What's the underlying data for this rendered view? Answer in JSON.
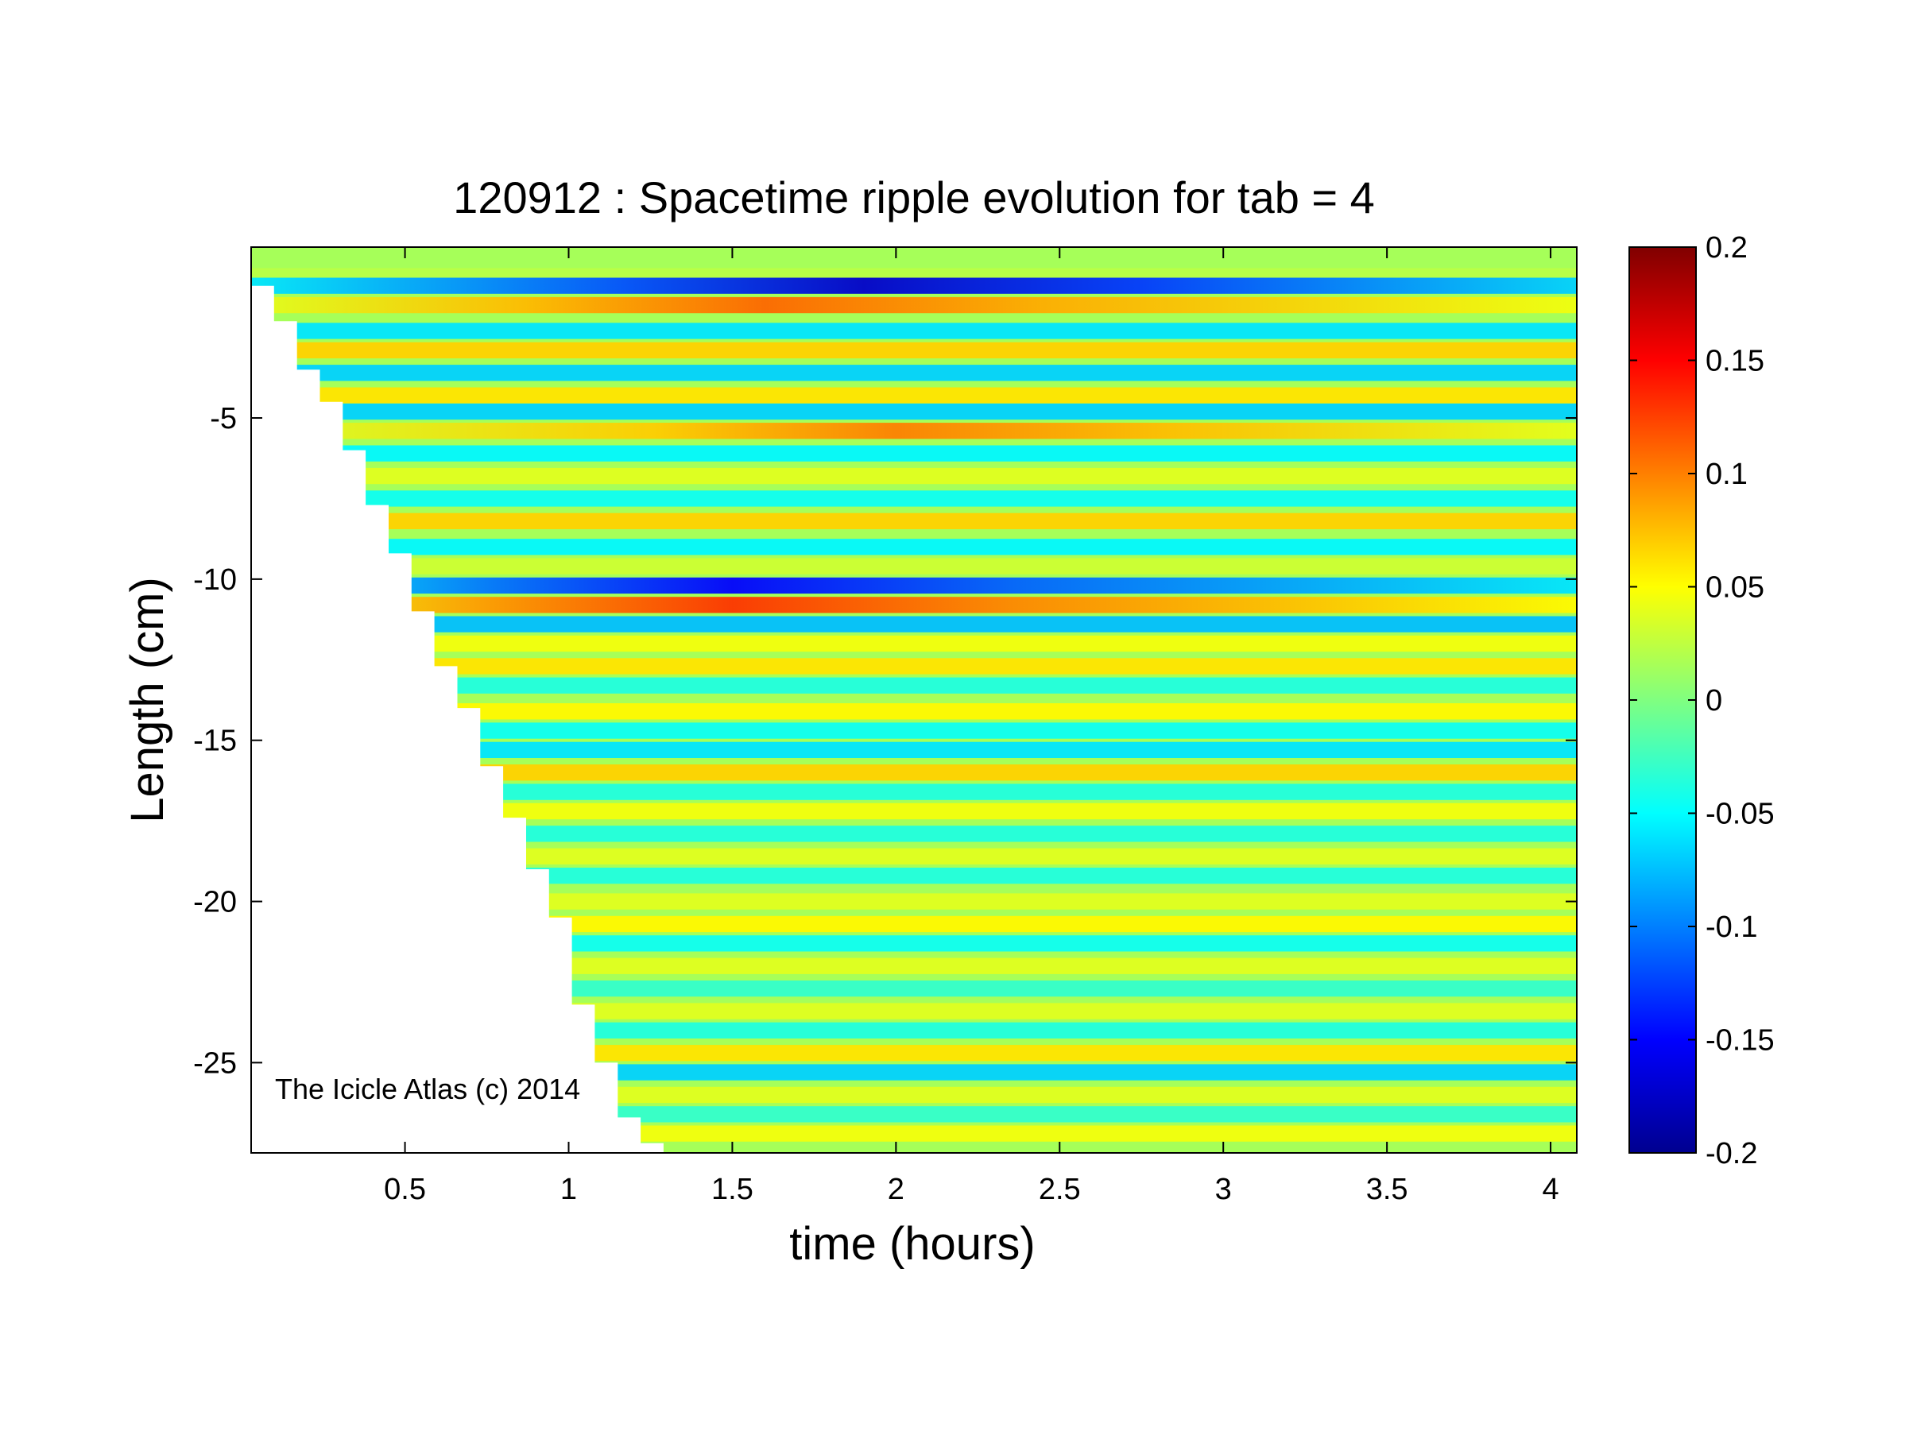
{
  "chart_data": {
    "type": "heatmap",
    "title": "120912 : Spacetime ripple evolution for tab = 4",
    "xlabel": "time (hours)",
    "ylabel": "Length (cm)",
    "xlim": [
      0.03,
      4.08
    ],
    "ylim": [
      -27.8,
      0.3
    ],
    "x_ticks": [
      0.5,
      1,
      1.5,
      2,
      2.5,
      3,
      3.5,
      4
    ],
    "x_tick_labels": [
      "0.5",
      "1",
      "1.5",
      "2",
      "2.5",
      "3",
      "3.5",
      "4"
    ],
    "y_ticks": [
      -5,
      -10,
      -15,
      -20,
      -25
    ],
    "y_tick_labels": [
      "-5",
      "-10",
      "-15",
      "-20",
      "-25"
    ],
    "colorbar": {
      "colormap": "jet",
      "clim": [
        -0.2,
        0.2
      ],
      "ticks": [
        0.2,
        0.15,
        0.1,
        0.05,
        0,
        -0.05,
        -0.1,
        -0.15,
        -0.2
      ],
      "tick_labels": [
        "0.2",
        "0.15",
        "0.1",
        "0.05",
        "0",
        "-0.05",
        "-0.1",
        "-0.15",
        "-0.2"
      ]
    },
    "boundary_edge": [
      {
        "time": 0.03,
        "length": -0.9
      },
      {
        "time": 0.1,
        "length": -2.0
      },
      {
        "time": 0.17,
        "length": -3.5
      },
      {
        "time": 0.24,
        "length": -4.5
      },
      {
        "time": 0.31,
        "length": -6.0
      },
      {
        "time": 0.38,
        "length": -7.7
      },
      {
        "time": 0.45,
        "length": -9.2
      },
      {
        "time": 0.52,
        "length": -11.0
      },
      {
        "time": 0.59,
        "length": -12.7
      },
      {
        "time": 0.66,
        "length": -14.0
      },
      {
        "time": 0.73,
        "length": -15.8
      },
      {
        "time": 0.8,
        "length": -17.4
      },
      {
        "time": 0.87,
        "length": -19.0
      },
      {
        "time": 0.94,
        "length": -20.5
      },
      {
        "time": 1.01,
        "length": -23.2
      },
      {
        "time": 1.08,
        "length": -25.0
      },
      {
        "time": 1.15,
        "length": -26.7
      },
      {
        "time": 1.22,
        "length": -27.5
      },
      {
        "time": 1.29,
        "length": -27.7
      }
    ],
    "ripple_bands": [
      {
        "length": -0.6,
        "value": 0.03
      },
      {
        "length": -0.9,
        "value": -0.17,
        "peak_time": 1.9
      },
      {
        "length": -1.5,
        "value": 0.11,
        "peak_time": 1.6
      },
      {
        "length": -2.3,
        "value": -0.08
      },
      {
        "length": -2.9,
        "value": 0.09
      },
      {
        "length": -3.6,
        "value": -0.09
      },
      {
        "length": -4.3,
        "value": 0.08
      },
      {
        "length": -4.8,
        "value": -0.09
      },
      {
        "length": -5.4,
        "value": 0.1,
        "peak_time": 2.0
      },
      {
        "length": -6.1,
        "value": -0.07
      },
      {
        "length": -6.8,
        "value": 0.05
      },
      {
        "length": -7.5,
        "value": -0.06
      },
      {
        "length": -8.2,
        "value": 0.09
      },
      {
        "length": -9.0,
        "value": -0.07
      },
      {
        "length": -9.6,
        "value": 0.04
      },
      {
        "length": -10.2,
        "value": -0.15,
        "peak_time": 1.5
      },
      {
        "length": -10.8,
        "value": 0.13,
        "peak_time": 1.5
      },
      {
        "length": -11.4,
        "value": -0.1
      },
      {
        "length": -12.0,
        "value": 0.06
      },
      {
        "length": -12.7,
        "value": 0.08
      },
      {
        "length": -13.3,
        "value": -0.05
      },
      {
        "length": -14.1,
        "value": 0.07
      },
      {
        "length": -14.7,
        "value": -0.06
      },
      {
        "length": -15.3,
        "value": -0.08
      },
      {
        "length": -16.0,
        "value": 0.09
      },
      {
        "length": -16.6,
        "value": -0.05
      },
      {
        "length": -17.2,
        "value": 0.06
      },
      {
        "length": -17.9,
        "value": -0.05
      },
      {
        "length": -18.6,
        "value": 0.05
      },
      {
        "length": -19.2,
        "value": -0.05
      },
      {
        "length": -20.0,
        "value": 0.05
      },
      {
        "length": -20.7,
        "value": 0.07
      },
      {
        "length": -21.3,
        "value": -0.06
      },
      {
        "length": -22.0,
        "value": 0.05
      },
      {
        "length": -22.7,
        "value": -0.04
      },
      {
        "length": -23.4,
        "value": 0.05
      },
      {
        "length": -24.0,
        "value": -0.05
      },
      {
        "length": -24.7,
        "value": 0.08
      },
      {
        "length": -25.3,
        "value": -0.09
      },
      {
        "length": -26.0,
        "value": 0.05
      },
      {
        "length": -26.6,
        "value": -0.04
      },
      {
        "length": -27.2,
        "value": 0.06
      }
    ]
  },
  "watermark": "The Icicle Atlas (c) 2014"
}
